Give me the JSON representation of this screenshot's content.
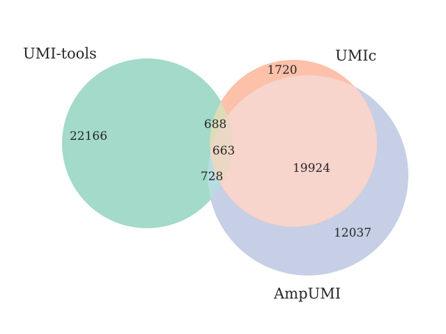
{
  "venn": {
    "sets": {
      "umi_tools": {
        "label": "UMI-tools",
        "color": "#66c2a5"
      },
      "umic": {
        "label": "UMIc",
        "color": "#fc8d62"
      },
      "ampumi": {
        "label": "AmpUMI",
        "color": "#8da0cb"
      }
    },
    "regions": {
      "umi_tools_only": "22166",
      "umic_only": "1720",
      "ampumi_only": "12037",
      "umi_tools_umic": "688",
      "umi_tools_umic_ampumi": "663",
      "umi_tools_ampumi": "728",
      "umic_ampumi": "19924"
    }
  }
}
